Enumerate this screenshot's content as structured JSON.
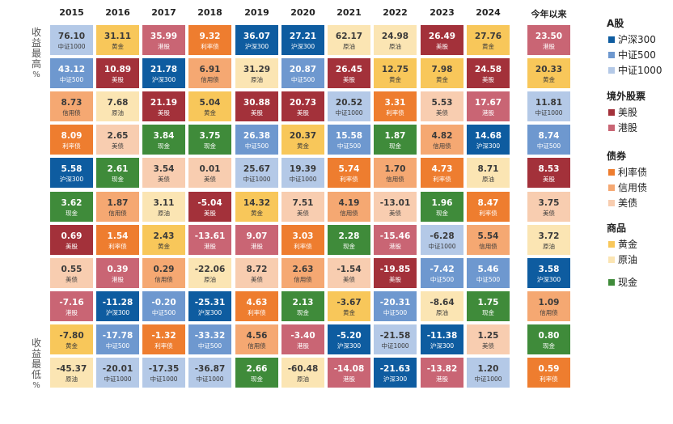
{
  "chart_data": {
    "type": "table",
    "columns": [
      "2015",
      "2016",
      "2017",
      "2018",
      "2019",
      "2020",
      "2021",
      "2022",
      "2023",
      "2024",
      "今年以来"
    ],
    "side_labels": {
      "top": "收益最高%",
      "bottom": "收益最低%"
    },
    "legend": [
      {
        "group": "A股",
        "items": [
          {
            "key": "hs300",
            "label": "沪深300",
            "color": "#0e5ca0"
          },
          {
            "key": "zz500",
            "label": "中证500",
            "color": "#6e98cf"
          },
          {
            "key": "zz1000",
            "label": "中证1000",
            "color": "#b4c9e7"
          }
        ]
      },
      {
        "group": "境外股票",
        "items": [
          {
            "key": "us",
            "label": "美股",
            "color": "#a3313a"
          },
          {
            "key": "hk",
            "label": "港股",
            "color": "#c96574"
          }
        ]
      },
      {
        "group": "债券",
        "items": [
          {
            "key": "rate",
            "label": "利率债",
            "color": "#ee7d2f"
          },
          {
            "key": "credit",
            "label": "信用债",
            "color": "#f5a872"
          },
          {
            "key": "usbond",
            "label": "美债",
            "color": "#f8cdb0"
          }
        ]
      },
      {
        "group": "商品",
        "items": [
          {
            "key": "gold",
            "label": "黄金",
            "color": "#f8c75a"
          },
          {
            "key": "oil",
            "label": "原油",
            "color": "#fbe5b3"
          }
        ]
      },
      {
        "group": "",
        "items": [
          {
            "key": "cash",
            "label": "现金",
            "color": "#3f8b3a"
          }
        ]
      }
    ],
    "cells": [
      [
        {
          "v": "76.10",
          "n": "中证1000",
          "k": "zz1000"
        },
        {
          "v": "43.12",
          "n": "中证500",
          "k": "zz500"
        },
        {
          "v": "8.73",
          "n": "信用债",
          "k": "credit"
        },
        {
          "v": "8.09",
          "n": "利率债",
          "k": "rate"
        },
        {
          "v": "5.58",
          "n": "沪深300",
          "k": "hs300"
        },
        {
          "v": "3.62",
          "n": "现金",
          "k": "cash"
        },
        {
          "v": "0.69",
          "n": "美股",
          "k": "us"
        },
        {
          "v": "0.55",
          "n": "美债",
          "k": "usbond"
        },
        {
          "v": "-7.16",
          "n": "港股",
          "k": "hk"
        },
        {
          "v": "-7.80",
          "n": "黄金",
          "k": "gold"
        },
        {
          "v": "-45.37",
          "n": "原油",
          "k": "oil"
        }
      ],
      [
        {
          "v": "31.11",
          "n": "黄金",
          "k": "gold"
        },
        {
          "v": "10.89",
          "n": "美股",
          "k": "us"
        },
        {
          "v": "7.68",
          "n": "原油",
          "k": "oil"
        },
        {
          "v": "2.65",
          "n": "美债",
          "k": "usbond"
        },
        {
          "v": "2.61",
          "n": "现金",
          "k": "cash"
        },
        {
          "v": "1.87",
          "n": "信用债",
          "k": "credit"
        },
        {
          "v": "1.54",
          "n": "利率债",
          "k": "rate"
        },
        {
          "v": "0.39",
          "n": "港股",
          "k": "hk"
        },
        {
          "v": "-11.28",
          "n": "沪深300",
          "k": "hs300"
        },
        {
          "v": "-17.78",
          "n": "中证500",
          "k": "zz500"
        },
        {
          "v": "-20.01",
          "n": "中证1000",
          "k": "zz1000"
        }
      ],
      [
        {
          "v": "35.99",
          "n": "港股",
          "k": "hk"
        },
        {
          "v": "21.78",
          "n": "沪深300",
          "k": "hs300"
        },
        {
          "v": "21.19",
          "n": "美股",
          "k": "us"
        },
        {
          "v": "3.84",
          "n": "现金",
          "k": "cash"
        },
        {
          "v": "3.54",
          "n": "美债",
          "k": "usbond"
        },
        {
          "v": "3.11",
          "n": "原油",
          "k": "oil"
        },
        {
          "v": "2.43",
          "n": "黄金",
          "k": "gold"
        },
        {
          "v": "0.29",
          "n": "信用债",
          "k": "credit"
        },
        {
          "v": "-0.20",
          "n": "中证500",
          "k": "zz500"
        },
        {
          "v": "-1.32",
          "n": "利率债",
          "k": "rate"
        },
        {
          "v": "-17.35",
          "n": "中证1000",
          "k": "zz1000"
        }
      ],
      [
        {
          "v": "9.32",
          "n": "利率债",
          "k": "rate"
        },
        {
          "v": "6.91",
          "n": "信用债",
          "k": "credit"
        },
        {
          "v": "5.04",
          "n": "黄金",
          "k": "gold"
        },
        {
          "v": "3.75",
          "n": "现金",
          "k": "cash"
        },
        {
          "v": "0.01",
          "n": "美债",
          "k": "usbond"
        },
        {
          "v": "-5.04",
          "n": "美股",
          "k": "us"
        },
        {
          "v": "-13.61",
          "n": "港股",
          "k": "hk"
        },
        {
          "v": "-22.06",
          "n": "原油",
          "k": "oil"
        },
        {
          "v": "-25.31",
          "n": "沪深300",
          "k": "hs300"
        },
        {
          "v": "-33.32",
          "n": "中证500",
          "k": "zz500"
        },
        {
          "v": "-36.87",
          "n": "中证1000",
          "k": "zz1000"
        }
      ],
      [
        {
          "v": "36.07",
          "n": "沪深300",
          "k": "hs300"
        },
        {
          "v": "31.29",
          "n": "原油",
          "k": "oil"
        },
        {
          "v": "30.88",
          "n": "美股",
          "k": "us"
        },
        {
          "v": "26.38",
          "n": "中证500",
          "k": "zz500"
        },
        {
          "v": "25.67",
          "n": "中证1000",
          "k": "zz1000"
        },
        {
          "v": "14.32",
          "n": "黄金",
          "k": "gold"
        },
        {
          "v": "9.07",
          "n": "港股",
          "k": "hk"
        },
        {
          "v": "8.72",
          "n": "美债",
          "k": "usbond"
        },
        {
          "v": "4.63",
          "n": "利率债",
          "k": "rate"
        },
        {
          "v": "4.56",
          "n": "信用债",
          "k": "credit"
        },
        {
          "v": "2.66",
          "n": "现金",
          "k": "cash"
        }
      ],
      [
        {
          "v": "27.21",
          "n": "沪深300",
          "k": "hs300"
        },
        {
          "v": "20.87",
          "n": "中证500",
          "k": "zz500"
        },
        {
          "v": "20.73",
          "n": "美股",
          "k": "us"
        },
        {
          "v": "20.37",
          "n": "黄金",
          "k": "gold"
        },
        {
          "v": "19.39",
          "n": "中证1000",
          "k": "zz1000"
        },
        {
          "v": "7.51",
          "n": "美债",
          "k": "usbond"
        },
        {
          "v": "3.03",
          "n": "利率债",
          "k": "rate"
        },
        {
          "v": "2.63",
          "n": "信用债",
          "k": "credit"
        },
        {
          "v": "2.13",
          "n": "现金",
          "k": "cash"
        },
        {
          "v": "-3.40",
          "n": "港股",
          "k": "hk"
        },
        {
          "v": "-60.48",
          "n": "原油",
          "k": "oil"
        }
      ],
      [
        {
          "v": "62.17",
          "n": "原油",
          "k": "oil"
        },
        {
          "v": "26.45",
          "n": "美股",
          "k": "us"
        },
        {
          "v": "20.52",
          "n": "中证1000",
          "k": "zz1000"
        },
        {
          "v": "15.58",
          "n": "中证500",
          "k": "zz500"
        },
        {
          "v": "5.74",
          "n": "利率债",
          "k": "rate"
        },
        {
          "v": "4.19",
          "n": "信用债",
          "k": "credit"
        },
        {
          "v": "2.28",
          "n": "现金",
          "k": "cash"
        },
        {
          "v": "-1.54",
          "n": "美债",
          "k": "usbond"
        },
        {
          "v": "-3.67",
          "n": "黄金",
          "k": "gold"
        },
        {
          "v": "-5.20",
          "n": "沪深300",
          "k": "hs300"
        },
        {
          "v": "-14.08",
          "n": "港股",
          "k": "hk"
        }
      ],
      [
        {
          "v": "24.98",
          "n": "原油",
          "k": "oil"
        },
        {
          "v": "12.75",
          "n": "黄金",
          "k": "gold"
        },
        {
          "v": "3.31",
          "n": "利率债",
          "k": "rate"
        },
        {
          "v": "1.87",
          "n": "现金",
          "k": "cash"
        },
        {
          "v": "1.70",
          "n": "信用债",
          "k": "credit"
        },
        {
          "v": "-13.01",
          "n": "美债",
          "k": "usbond"
        },
        {
          "v": "-15.46",
          "n": "港股",
          "k": "hk"
        },
        {
          "v": "-19.85",
          "n": "美股",
          "k": "us"
        },
        {
          "v": "-20.31",
          "n": "中证500",
          "k": "zz500"
        },
        {
          "v": "-21.58",
          "n": "中证1000",
          "k": "zz1000"
        },
        {
          "v": "-21.63",
          "n": "沪深300",
          "k": "hs300"
        }
      ],
      [
        {
          "v": "26.49",
          "n": "美股",
          "k": "us"
        },
        {
          "v": "7.98",
          "n": "黄金",
          "k": "gold"
        },
        {
          "v": "5.53",
          "n": "美债",
          "k": "usbond"
        },
        {
          "v": "4.82",
          "n": "信用债",
          "k": "credit"
        },
        {
          "v": "4.73",
          "n": "利率债",
          "k": "rate"
        },
        {
          "v": "1.96",
          "n": "现金",
          "k": "cash"
        },
        {
          "v": "-6.28",
          "n": "中证1000",
          "k": "zz1000"
        },
        {
          "v": "-7.42",
          "n": "中证500",
          "k": "zz500"
        },
        {
          "v": "-8.64",
          "n": "原油",
          "k": "oil"
        },
        {
          "v": "-11.38",
          "n": "沪深300",
          "k": "hs300"
        },
        {
          "v": "-13.82",
          "n": "港股",
          "k": "hk"
        }
      ],
      [
        {
          "v": "27.76",
          "n": "黄金",
          "k": "gold"
        },
        {
          "v": "24.58",
          "n": "美股",
          "k": "us"
        },
        {
          "v": "17.67",
          "n": "港股",
          "k": "hk"
        },
        {
          "v": "14.68",
          "n": "沪深300",
          "k": "hs300"
        },
        {
          "v": "8.71",
          "n": "原油",
          "k": "oil"
        },
        {
          "v": "8.47",
          "n": "利率债",
          "k": "rate"
        },
        {
          "v": "5.54",
          "n": "信用债",
          "k": "credit"
        },
        {
          "v": "5.46",
          "n": "中证500",
          "k": "zz500"
        },
        {
          "v": "1.75",
          "n": "现金",
          "k": "cash"
        },
        {
          "v": "1.25",
          "n": "美债",
          "k": "usbond"
        },
        {
          "v": "1.20",
          "n": "中证1000",
          "k": "zz1000"
        }
      ],
      [
        {
          "v": "23.50",
          "n": "港股",
          "k": "hk"
        },
        {
          "v": "20.33",
          "n": "黄金",
          "k": "gold"
        },
        {
          "v": "11.81",
          "n": "中证1000",
          "k": "zz1000"
        },
        {
          "v": "8.74",
          "n": "中证500",
          "k": "zz500"
        },
        {
          "v": "8.53",
          "n": "美股",
          "k": "us"
        },
        {
          "v": "3.75",
          "n": "美债",
          "k": "usbond"
        },
        {
          "v": "3.72",
          "n": "原油",
          "k": "oil"
        },
        {
          "v": "3.58",
          "n": "沪深300",
          "k": "hs300"
        },
        {
          "v": "1.09",
          "n": "信用债",
          "k": "credit"
        },
        {
          "v": "0.80",
          "n": "现金",
          "k": "cash"
        },
        {
          "v": "0.59",
          "n": "利率债",
          "k": "rate"
        }
      ]
    ]
  }
}
